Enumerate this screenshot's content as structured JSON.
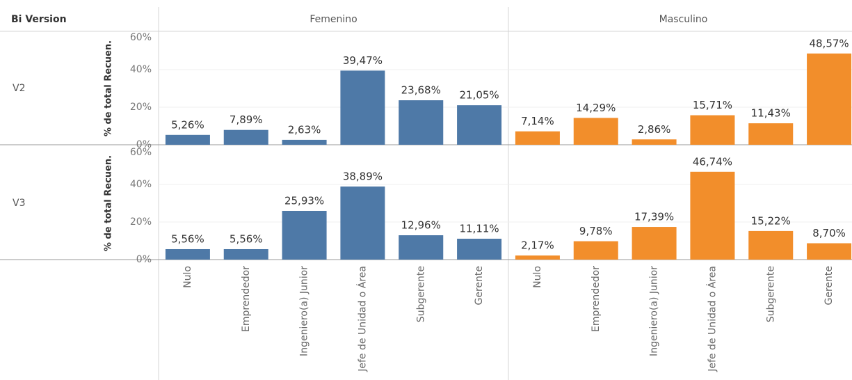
{
  "chart_data": {
    "type": "bar",
    "row_header": "Bi Version",
    "y_label": "% de total Recuen.",
    "categories": [
      "Nulo",
      "Emprendedor",
      "Ingeniero(a) Junior",
      "Jefe de Unidad o Área",
      "Subgerente",
      "Gerente"
    ],
    "columns": [
      {
        "name": "Femenino",
        "color": "#4e79a7"
      },
      {
        "name": "Masculino",
        "color": "#f28e2b"
      }
    ],
    "ylim": [
      0,
      60
    ],
    "yticks": [
      {
        "value": 0,
        "label": "0%"
      },
      {
        "value": 20,
        "label": "20%"
      },
      {
        "value": 40,
        "label": "40%"
      },
      {
        "value": 60,
        "label": "60%"
      }
    ],
    "grid": true,
    "rows": [
      {
        "name": "V2",
        "values": [
          [
            5.26,
            7.89,
            2.63,
            39.47,
            23.68,
            21.05
          ],
          [
            7.14,
            14.29,
            2.86,
            15.71,
            11.43,
            48.57
          ]
        ],
        "value_labels": [
          [
            "5,26%",
            "7,89%",
            "2,63%",
            "39,47%",
            "23,68%",
            "21,05%"
          ],
          [
            "7,14%",
            "14,29%",
            "2,86%",
            "15,71%",
            "11,43%",
            "48,57%"
          ]
        ]
      },
      {
        "name": "V3",
        "values": [
          [
            5.56,
            5.56,
            25.93,
            38.89,
            12.96,
            11.11
          ],
          [
            2.17,
            9.78,
            17.39,
            46.74,
            15.22,
            8.7
          ]
        ],
        "value_labels": [
          [
            "5,56%",
            "5,56%",
            "25,93%",
            "38,89%",
            "12,96%",
            "11,11%"
          ],
          [
            "2,17%",
            "9,78%",
            "17,39%",
            "46,74%",
            "15,22%",
            "8,70%"
          ]
        ]
      }
    ]
  }
}
